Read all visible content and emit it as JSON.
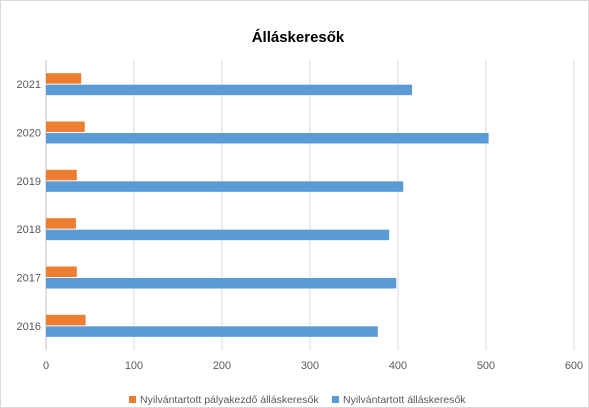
{
  "chart_data": {
    "type": "bar",
    "orientation": "horizontal",
    "title": "Álláskeresők",
    "categories": [
      "2016",
      "2017",
      "2018",
      "2019",
      "2020",
      "2021"
    ],
    "series": [
      {
        "name": "Nyilvántartott pályakezdő álláskeresők",
        "color": "#ed7d31",
        "values": [
          45,
          35,
          34,
          35,
          44,
          40
        ]
      },
      {
        "name": "Nyilvántartott álláskeresők",
        "color": "#5b9bd5",
        "values": [
          377,
          398,
          390,
          406,
          503,
          416
        ]
      }
    ],
    "xlim": [
      0,
      600
    ],
    "xticks": [
      "0",
      "100",
      "200",
      "300",
      "400",
      "500",
      "600"
    ],
    "grid": true,
    "legend": "bottom"
  }
}
